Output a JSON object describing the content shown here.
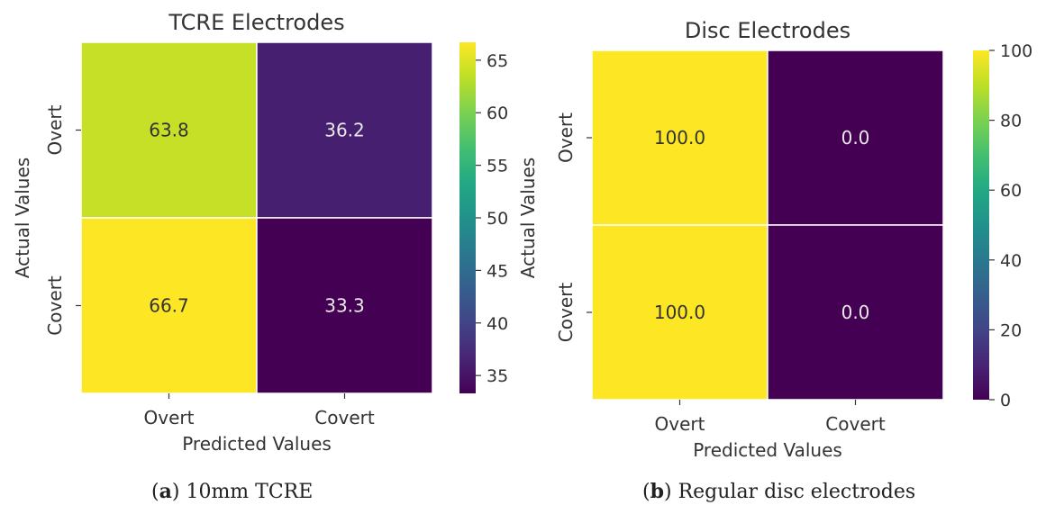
{
  "chart_data": [
    {
      "type": "heatmap",
      "title": "TCRE Electrodes",
      "xlabel": "Predicted Values",
      "ylabel": "Actual Values",
      "x_categories": [
        "Overt",
        "Covert"
      ],
      "y_categories": [
        "Overt",
        "Covert"
      ],
      "values": [
        [
          63.8,
          36.2
        ],
        [
          66.7,
          33.3
        ]
      ],
      "cell_labels": [
        [
          "63.8",
          "36.2"
        ],
        [
          "66.7",
          "33.3"
        ]
      ],
      "colormap": "viridis",
      "colorbar": {
        "min": 33.3,
        "max": 66.7,
        "ticks": [
          35,
          40,
          45,
          50,
          55,
          60,
          65
        ],
        "tick_labels": [
          "35",
          "40",
          "45",
          "50",
          "55",
          "60",
          "65"
        ],
        "label": "Actual Values"
      },
      "caption": {
        "letter": "a",
        "text": "10mm TCRE"
      }
    },
    {
      "type": "heatmap",
      "title": "Disc Electrodes",
      "xlabel": "Predicted Values",
      "ylabel": "",
      "x_categories": [
        "Overt",
        "Covert"
      ],
      "y_categories": [
        "Overt",
        "Covert"
      ],
      "values": [
        [
          100.0,
          0.0
        ],
        [
          100.0,
          0.0
        ]
      ],
      "cell_labels": [
        [
          "100.0",
          "0.0"
        ],
        [
          "100.0",
          "0.0"
        ]
      ],
      "colormap": "viridis",
      "colorbar": {
        "min": 0,
        "max": 100,
        "ticks": [
          0,
          20,
          40,
          60,
          80,
          100
        ],
        "tick_labels": [
          "0",
          "20",
          "40",
          "60",
          "80",
          "100"
        ],
        "label": ""
      },
      "caption": {
        "letter": "b",
        "text": "Regular disc electrodes"
      }
    }
  ],
  "captions": {
    "a_open": "(",
    "a_letter": "a",
    "a_close": ")",
    "a_text": " 10mm TCRE",
    "b_open": "(",
    "b_letter": "b",
    "b_close": ")",
    "b_text": " Regular disc electrodes"
  },
  "colors": {
    "background": "#ffffff",
    "text": "#333333",
    "cell_border": "#ffffff"
  }
}
